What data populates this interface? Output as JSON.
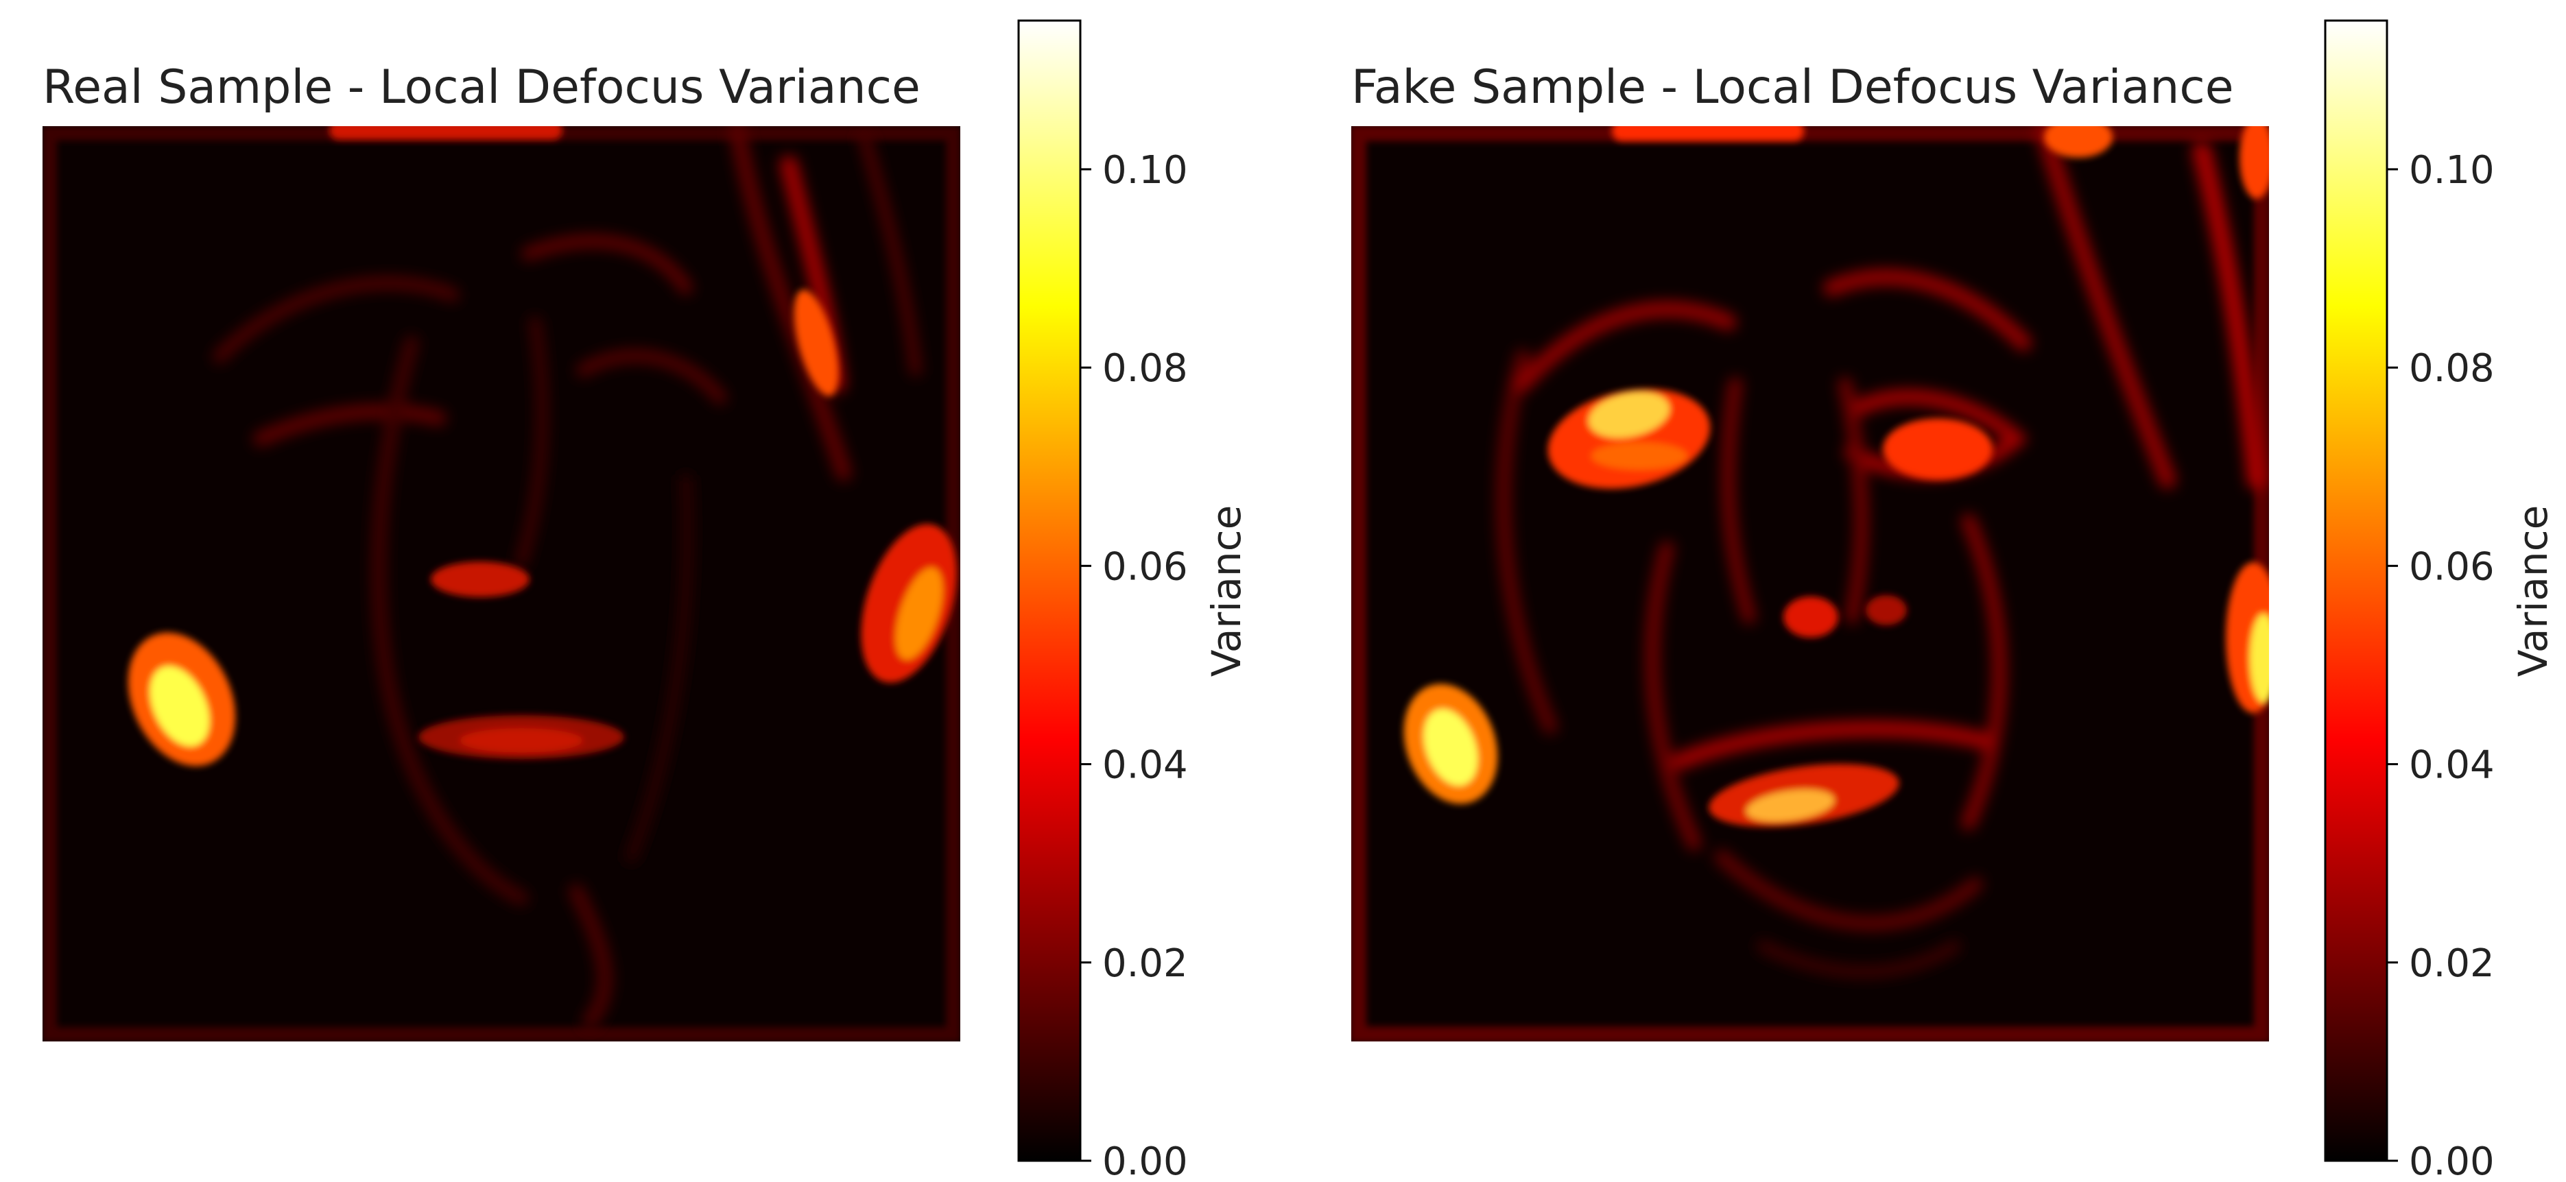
{
  "chart_data": [
    {
      "type": "heatmap",
      "title": "Real Sample - Local Defocus Variance",
      "colormap": "hot",
      "axes_visible": false,
      "colorbar": {
        "label": "Variance",
        "range": [
          0.0,
          0.115
        ],
        "ticks": [
          0.0,
          0.02,
          0.04,
          0.06,
          0.08,
          0.1
        ],
        "tick_labels": [
          "0.00",
          "0.02",
          "0.04",
          "0.06",
          "0.08",
          "0.10"
        ]
      },
      "hotspots": [
        {
          "region": "left cheek edge",
          "value": 0.095
        },
        {
          "region": "right hair edge",
          "value": 0.065
        },
        {
          "region": "top border",
          "value": 0.05
        },
        {
          "region": "nose",
          "value": 0.04
        },
        {
          "region": "mouth",
          "value": 0.03
        },
        {
          "region": "right hair strand",
          "value": 0.05
        }
      ]
    },
    {
      "type": "heatmap",
      "title": "Fake Sample - Local Defocus Variance",
      "colormap": "hot",
      "axes_visible": false,
      "colorbar": {
        "label": "Variance",
        "range": [
          0.0,
          0.115
        ],
        "ticks": [
          0.0,
          0.02,
          0.04,
          0.06,
          0.08,
          0.1
        ],
        "tick_labels": [
          "0.00",
          "0.02",
          "0.04",
          "0.06",
          "0.08",
          "0.10"
        ]
      },
      "hotspots": [
        {
          "region": "left cheek edge",
          "value": 0.095
        },
        {
          "region": "left eye",
          "value": 0.09
        },
        {
          "region": "right eye",
          "value": 0.05
        },
        {
          "region": "mouth",
          "value": 0.06
        },
        {
          "region": "right edge",
          "value": 0.09
        },
        {
          "region": "top border",
          "value": 0.06
        }
      ]
    }
  ]
}
